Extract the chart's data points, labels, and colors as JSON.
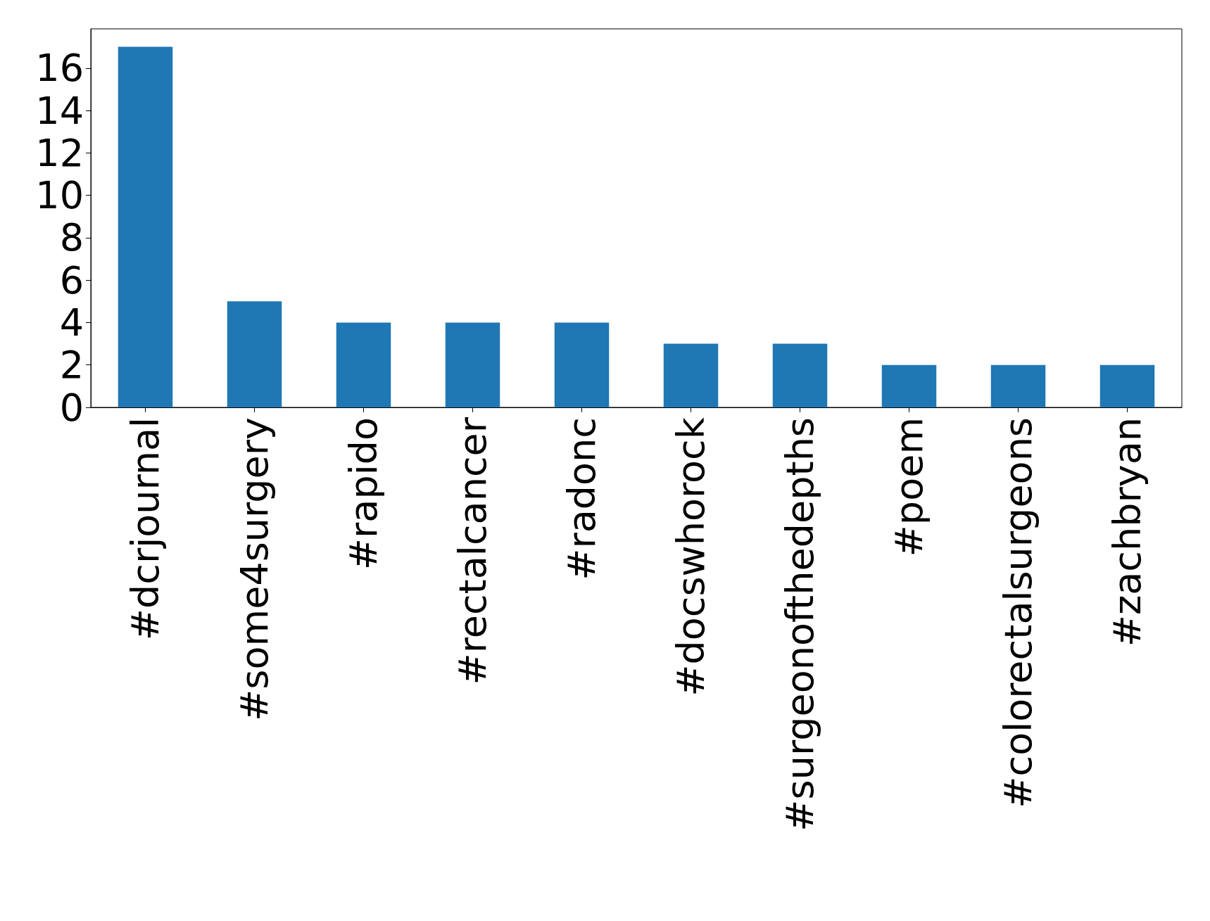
{
  "chart_data": {
    "type": "bar",
    "categories": [
      "#dcrjournal",
      "#some4surgery",
      "#rapido",
      "#rectalcancer",
      "#radonc",
      "#docswhorock",
      "#surgeonofthedepths",
      "#poem",
      "#colorectalsurgeons",
      "#zachbryan"
    ],
    "values": [
      17,
      5,
      4,
      4,
      4,
      3,
      3,
      2,
      2,
      2
    ],
    "color": "#1f77b4",
    "ylim": [
      0,
      17.85
    ],
    "yticks": [
      0,
      2,
      4,
      6,
      8,
      10,
      12,
      14,
      16
    ],
    "grid": false
  }
}
